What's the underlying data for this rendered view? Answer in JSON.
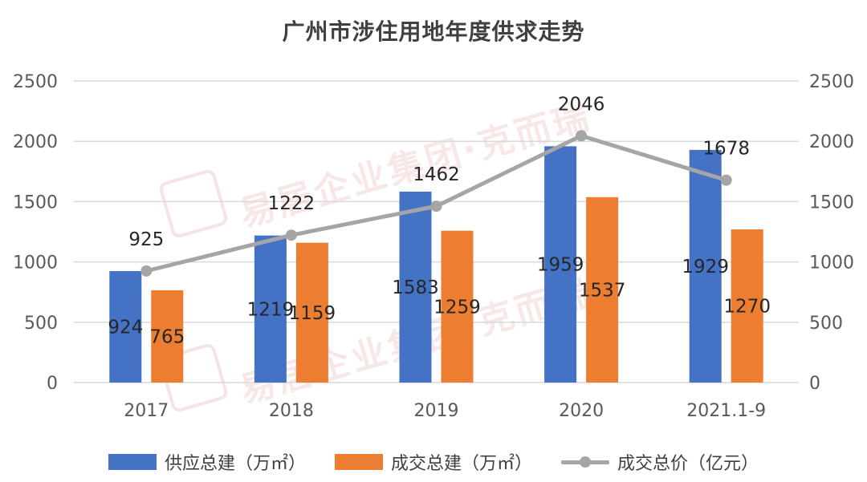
{
  "title": "广州市涉住用地年度供求走势",
  "watermark": "易居企业集团·克而瑞",
  "chart_data": {
    "type": "bar",
    "categories": [
      "2017",
      "2018",
      "2019",
      "2020",
      "2021.1-9"
    ],
    "series": [
      {
        "name": "供应总建（万㎡）",
        "kind": "bar",
        "color": "#4472C4",
        "values": [
          924,
          1219,
          1583,
          1959,
          1929
        ]
      },
      {
        "name": "成交总建（万㎡）",
        "kind": "bar",
        "color": "#ED7D31",
        "values": [
          765,
          1159,
          1259,
          1537,
          1270
        ]
      },
      {
        "name": "成交总价（亿元）",
        "kind": "line",
        "color": "#A5A5A5",
        "values": [
          925,
          1222,
          1462,
          2046,
          1678
        ]
      }
    ],
    "ylim": [
      0,
      2500
    ],
    "yticks": [
      0,
      500,
      1000,
      1500,
      2000,
      2500
    ],
    "y2lim": [
      0,
      2500
    ],
    "y2ticks": [
      0,
      500,
      1000,
      1500,
      2000,
      2500
    ],
    "xlabel": "",
    "ylabel": "",
    "grid": true,
    "legend_position": "bottom"
  }
}
